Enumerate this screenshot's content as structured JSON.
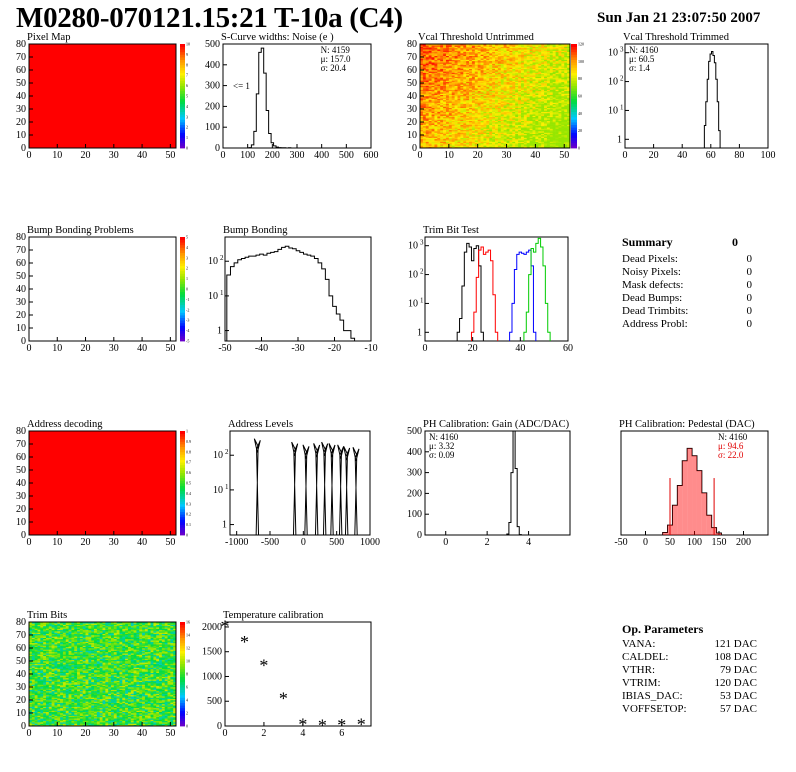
{
  "header": {
    "title": "M0280-070121.15:21 T-10a (C4)",
    "datetime": "Sun Jan 21 23:07:50 2007"
  },
  "chart_data": [
    {
      "id": "pixel_map",
      "type": "heatmap",
      "title": "Pixel Map",
      "xlim": [
        0,
        52
      ],
      "ylim": [
        0,
        80
      ],
      "xticks": [
        0,
        10,
        20,
        30,
        40,
        50
      ],
      "yticks": [
        0,
        10,
        20,
        30,
        40,
        50,
        60,
        70,
        80
      ],
      "fill": "uniform",
      "fill_color": "#ff0000",
      "colorbar": {
        "min": 0,
        "max": 10,
        "labels": [
          "0",
          "1",
          "2",
          "3",
          "4",
          "5",
          "6",
          "7",
          "8",
          "9",
          "10"
        ]
      }
    },
    {
      "id": "scurve_widths",
      "type": "line",
      "title": "S-Curve widths: Noise (e )",
      "xlim": [
        0,
        600
      ],
      "ylim": [
        0,
        500
      ],
      "xticks": [
        0,
        100,
        200,
        300,
        400,
        500,
        600
      ],
      "yticks": [
        0,
        100,
        200,
        300,
        400,
        500
      ],
      "stats": [
        "N: 4159",
        "μ: 157.0",
        "σ: 20.4"
      ],
      "annotation": "<= 1",
      "x": [
        100,
        110,
        120,
        130,
        140,
        150,
        160,
        170,
        180,
        190,
        200,
        210,
        220,
        230,
        240,
        250,
        260,
        270,
        280
      ],
      "values": [
        0,
        2,
        15,
        80,
        260,
        460,
        480,
        360,
        180,
        70,
        25,
        10,
        4,
        2,
        1,
        1,
        0,
        1,
        0
      ]
    },
    {
      "id": "vcal_untrimmed",
      "type": "heatmap",
      "title": "Vcal Threshold Untrimmed",
      "xlim": [
        0,
        52
      ],
      "ylim": [
        0,
        80
      ],
      "xticks": [
        0,
        10,
        20,
        30,
        40,
        50
      ],
      "yticks": [
        0,
        10,
        20,
        30,
        40,
        50,
        60,
        70,
        80
      ],
      "fill": "gradient_noise",
      "colorbar": {
        "min": 0,
        "max": 120,
        "labels": [
          "0",
          "20",
          "40",
          "60",
          "80",
          "100",
          "120"
        ]
      }
    },
    {
      "id": "vcal_trimmed",
      "type": "line",
      "title": "Vcal Threshold Trimmed",
      "xlim": [
        0,
        100
      ],
      "ylim": [
        0.5,
        2000
      ],
      "yscale": "log",
      "xticks": [
        0,
        20,
        40,
        60,
        80,
        100
      ],
      "yticks": [
        1,
        10,
        100,
        1000
      ],
      "stats": [
        "N: 4160",
        "μ: 60.5",
        "σ:  1.4"
      ],
      "x": [
        56,
        57,
        58,
        59,
        60,
        61,
        62,
        63,
        64,
        65,
        66
      ],
      "values": [
        3,
        20,
        120,
        500,
        900,
        1100,
        800,
        450,
        120,
        20,
        2
      ]
    },
    {
      "id": "bump_problems",
      "type": "heatmap",
      "title": "Bump Bonding Problems",
      "xlim": [
        0,
        52
      ],
      "ylim": [
        0,
        80
      ],
      "xticks": [
        0,
        10,
        20,
        30,
        40,
        50
      ],
      "yticks": [
        0,
        10,
        20,
        30,
        40,
        50,
        60,
        70,
        80
      ],
      "fill": "empty",
      "colorbar": {
        "min": -5,
        "max": 5,
        "labels": [
          "-5",
          "-4",
          "-3",
          "-2",
          "-1",
          "0",
          "1",
          "2",
          "3",
          "4",
          "5"
        ]
      }
    },
    {
      "id": "bump_bonding",
      "type": "line",
      "title": "Bump Bonding",
      "xlim": [
        -50,
        -10
      ],
      "ylim": [
        0.5,
        500
      ],
      "yscale": "log",
      "xticks": [
        -50,
        -40,
        -30,
        -20,
        -10
      ],
      "yticks": [
        1,
        10,
        100
      ],
      "x": [
        -49,
        -48,
        -47,
        -46,
        -45,
        -44,
        -43,
        -42,
        -41,
        -40,
        -39,
        -38,
        -37,
        -36,
        -35,
        -34,
        -33,
        -32,
        -31,
        -30,
        -29,
        -28,
        -27,
        -26,
        -25,
        -24,
        -23,
        -22,
        -21,
        -20,
        -19,
        -18,
        -17,
        -16,
        -15
      ],
      "values": [
        40,
        70,
        90,
        110,
        120,
        130,
        140,
        140,
        150,
        160,
        150,
        170,
        180,
        190,
        220,
        250,
        270,
        240,
        230,
        200,
        180,
        160,
        150,
        140,
        120,
        90,
        60,
        30,
        10,
        5,
        3,
        2,
        1,
        1,
        0.6
      ]
    },
    {
      "id": "trim_bit_test",
      "type": "line",
      "title": "Trim Bit Test",
      "xlim": [
        0,
        60
      ],
      "ylim": [
        0.5,
        2000
      ],
      "yscale": "log",
      "xticks": [
        0,
        20,
        40,
        60
      ],
      "yticks": [
        1,
        10,
        100,
        1000
      ],
      "series": [
        {
          "color": "#000000",
          "x": [
            14,
            15,
            16,
            17,
            18,
            19,
            20,
            21,
            22,
            23,
            24
          ],
          "values": [
            1,
            3,
            40,
            600,
            1200,
            900,
            300,
            800,
            1000,
            200,
            1
          ]
        },
        {
          "color": "#ff0000",
          "x": [
            20,
            21,
            22,
            23,
            24,
            25,
            26,
            27,
            28,
            29,
            30
          ],
          "values": [
            1,
            5,
            80,
            700,
            900,
            500,
            600,
            700,
            300,
            20,
            1
          ]
        },
        {
          "color": "#0000ff",
          "x": [
            36,
            37,
            38,
            39,
            40,
            41,
            42,
            43,
            44,
            45,
            46
          ],
          "values": [
            1,
            10,
            150,
            500,
            600,
            550,
            500,
            600,
            700,
            200,
            1
          ]
        },
        {
          "color": "#00cc00",
          "x": [
            42,
            43,
            44,
            45,
            46,
            47,
            48,
            49,
            50,
            51,
            52
          ],
          "values": [
            1,
            5,
            100,
            800,
            600,
            1200,
            1800,
            900,
            200,
            10,
            1
          ]
        }
      ]
    },
    {
      "id": "address_decoding",
      "type": "heatmap",
      "title": "Address decoding",
      "xlim": [
        0,
        52
      ],
      "ylim": [
        0,
        80
      ],
      "xticks": [
        0,
        10,
        20,
        30,
        40,
        50
      ],
      "yticks": [
        0,
        10,
        20,
        30,
        40,
        50,
        60,
        70,
        80
      ],
      "fill": "uniform",
      "fill_color": "#ff0000",
      "colorbar": {
        "min": 0,
        "max": 1,
        "labels": [
          "0",
          "0.1",
          "0.2",
          "0.3",
          "0.4",
          "0.5",
          "0.6",
          "0.7",
          "0.8",
          "0.9",
          "1"
        ]
      }
    },
    {
      "id": "address_levels",
      "type": "line",
      "title": "Address Levels",
      "xlim": [
        -1100,
        1000
      ],
      "ylim": [
        0.5,
        500
      ],
      "yscale": "log",
      "xticks": [
        -1000,
        -500,
        0,
        500,
        1000
      ],
      "yticks": [
        1,
        10,
        100
      ],
      "peaks": [
        {
          "x": -690,
          "h": 300
        },
        {
          "x": -130,
          "h": 240
        },
        {
          "x": 40,
          "h": 200
        },
        {
          "x": 200,
          "h": 220
        },
        {
          "x": 320,
          "h": 240
        },
        {
          "x": 430,
          "h": 220
        },
        {
          "x": 560,
          "h": 200
        },
        {
          "x": 650,
          "h": 180
        },
        {
          "x": 790,
          "h": 170
        }
      ]
    },
    {
      "id": "ph_gain",
      "type": "line",
      "title": "PH Calibration: Gain (ADC/DAC)",
      "xlim": [
        -1,
        6
      ],
      "ylim": [
        0,
        500
      ],
      "xticks": [
        0,
        2,
        4
      ],
      "yticks": [
        0,
        100,
        200,
        300,
        400,
        500
      ],
      "stats": [
        "N: 4160",
        "μ: 3.32",
        "σ: 0.09"
      ],
      "x": [
        3.0,
        3.1,
        3.2,
        3.3,
        3.4,
        3.5,
        3.6
      ],
      "values": [
        5,
        60,
        300,
        500,
        320,
        40,
        2
      ]
    },
    {
      "id": "ph_pedestal",
      "type": "line",
      "title": "PH Calibration: Pedestal (DAC)",
      "xlim": [
        -50,
        250
      ],
      "ylim": [
        0,
        210
      ],
      "xticks": [
        -50,
        0,
        50,
        100,
        150,
        200
      ],
      "yticks": [],
      "stats": [
        "N: 4160",
        "μ: 94.6",
        "σ: 22.0"
      ],
      "x": [
        40,
        50,
        60,
        70,
        80,
        90,
        100,
        110,
        120,
        130,
        140,
        150
      ],
      "values": [
        5,
        20,
        60,
        100,
        150,
        175,
        160,
        130,
        85,
        40,
        15,
        4
      ],
      "fit_lines_x": [
        50,
        140
      ]
    },
    {
      "id": "trim_bits",
      "type": "heatmap",
      "title": "Trim Bits",
      "xlim": [
        0,
        52
      ],
      "ylim": [
        0,
        80
      ],
      "xticks": [
        0,
        10,
        20,
        30,
        40,
        50
      ],
      "yticks": [
        0,
        10,
        20,
        30,
        40,
        50,
        60,
        70,
        80
      ],
      "fill": "noise_green",
      "colorbar": {
        "min": 0,
        "max": 16,
        "labels": [
          "0",
          "2",
          "4",
          "6",
          "8",
          "10",
          "12",
          "14",
          "16"
        ]
      }
    },
    {
      "id": "temperature_calibration",
      "type": "scatter",
      "title": "Temperature calibration",
      "xlim": [
        0,
        7.5
      ],
      "ylim": [
        0,
        2100
      ],
      "xticks": [
        0,
        2,
        4,
        6
      ],
      "yticks": [
        0,
        500,
        1000,
        1500,
        2000
      ],
      "x": [
        0,
        1,
        2,
        3,
        4,
        5,
        6,
        7
      ],
      "values": [
        2030,
        1720,
        1240,
        580,
        50,
        30,
        40,
        50
      ]
    }
  ],
  "summary": {
    "title": "Summary",
    "total": "0",
    "rows": [
      {
        "label": "Dead Pixels:",
        "value": "0"
      },
      {
        "label": "Noisy Pixels:",
        "value": "0"
      },
      {
        "label": "Mask defects:",
        "value": "0"
      },
      {
        "label": "Dead Bumps:",
        "value": "0"
      },
      {
        "label": "Dead Trimbits:",
        "value": "0"
      },
      {
        "label": "Address Probl:",
        "value": "0"
      }
    ]
  },
  "op_params": {
    "title": "Op. Parameters",
    "rows": [
      {
        "label": "VANA:",
        "value": "121 DAC"
      },
      {
        "label": "CALDEL:",
        "value": "108 DAC"
      },
      {
        "label": "VTHR:",
        "value": "79 DAC"
      },
      {
        "label": "VTRIM:",
        "value": "120 DAC"
      },
      {
        "label": "IBIAS_DAC:",
        "value": "53 DAC"
      },
      {
        "label": "VOFFSETOP:",
        "value": "57 DAC"
      }
    ]
  }
}
